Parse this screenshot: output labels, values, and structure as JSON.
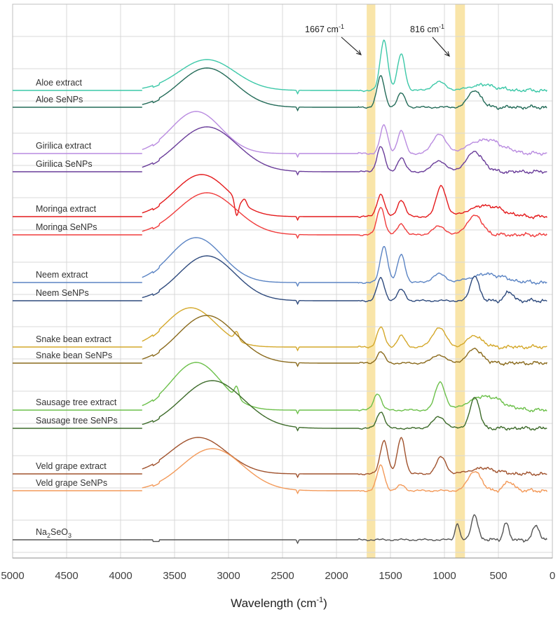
{
  "chart_data": {
    "type": "line",
    "title": "",
    "xlabel": "Wavelength (cm-1)",
    "xlabel_base": "Wavelength (cm",
    "xlabel_sup": "-1",
    "xlabel_close": ")",
    "ylabel": "",
    "xlim": [
      5000,
      0
    ],
    "x_reversed": true,
    "x_ticks": [
      5000,
      4500,
      4000,
      3500,
      3000,
      2500,
      2000,
      1500,
      1000,
      500,
      0
    ],
    "grid": true,
    "y_axis": "stacked offsets, no scale",
    "highlight_bands": [
      {
        "center": 1667,
        "from": 1720,
        "to": 1640,
        "color": "#f7dc8c"
      },
      {
        "center": 816,
        "from": 900,
        "to": 810,
        "color": "#f7dc8c"
      }
    ],
    "annotations": [
      {
        "text": "1667 cm-1",
        "base": "1667 cm",
        "sup": "-1",
        "arrow_to_x": 1700
      },
      {
        "text": "816 cm-1",
        "base": "816 cm",
        "sup": "-1",
        "arrow_to_x": 930
      }
    ],
    "series": [
      {
        "name": "Aloe extract",
        "color": "#3cc8a8",
        "baseline": 0.0,
        "highlight": 1,
        "features": [
          [
            3200,
            0.55,
            260
          ],
          [
            1560,
            0.9,
            35
          ],
          [
            1400,
            0.65,
            35
          ],
          [
            1050,
            0.15,
            60
          ],
          [
            640,
            0.1,
            120
          ]
        ]
      },
      {
        "name": "Aloe SeNPs",
        "color": "#236b58",
        "baseline": 0.0,
        "highlight": 0,
        "features": [
          [
            3200,
            0.7,
            260
          ],
          [
            1590,
            0.55,
            35
          ],
          [
            1400,
            0.25,
            35
          ],
          [
            720,
            0.3,
            60
          ]
        ]
      },
      {
        "name": "Girilica extract",
        "color": "#b98be0",
        "baseline": 0.0,
        "highlight": 1,
        "features": [
          [
            3300,
            0.75,
            230
          ],
          [
            1560,
            0.5,
            35
          ],
          [
            1400,
            0.4,
            35
          ],
          [
            1050,
            0.35,
            60
          ],
          [
            620,
            0.25,
            150
          ]
        ]
      },
      {
        "name": "Girilica SeNPs",
        "color": "#6a3d9a",
        "baseline": 0.0,
        "highlight": 0,
        "features": [
          [
            3200,
            0.8,
            280
          ],
          [
            1590,
            0.45,
            35
          ],
          [
            1400,
            0.25,
            35
          ],
          [
            1050,
            0.2,
            60
          ],
          [
            720,
            0.35,
            80
          ]
        ]
      },
      {
        "name": "Moringa extract",
        "color": "#e41a1c",
        "baseline": 0.0,
        "highlight": 1,
        "features": [
          [
            3250,
            0.75,
            250
          ],
          [
            2925,
            -0.3,
            18
          ],
          [
            2850,
            0.1,
            18
          ],
          [
            1590,
            0.4,
            35
          ],
          [
            1400,
            0.3,
            35
          ],
          [
            1030,
            0.55,
            45
          ],
          [
            620,
            0.2,
            150
          ]
        ]
      },
      {
        "name": "Moringa SeNPs",
        "color": "#f03c3c",
        "baseline": 0.0,
        "highlight": 0,
        "features": [
          [
            3200,
            0.75,
            270
          ],
          [
            1590,
            0.5,
            35
          ],
          [
            1400,
            0.2,
            35
          ],
          [
            1050,
            0.15,
            60
          ],
          [
            720,
            0.35,
            70
          ]
        ]
      },
      {
        "name": "Neem extract",
        "color": "#5b84c4",
        "baseline": 0.0,
        "highlight": 1,
        "features": [
          [
            3300,
            0.8,
            240
          ],
          [
            1560,
            0.65,
            35
          ],
          [
            1400,
            0.5,
            35
          ],
          [
            1050,
            0.15,
            60
          ],
          [
            600,
            0.15,
            150
          ]
        ]
      },
      {
        "name": "Neem SeNPs",
        "color": "#2e4a7d",
        "baseline": 0.0,
        "highlight": 0,
        "features": [
          [
            3200,
            0.8,
            260
          ],
          [
            1590,
            0.4,
            35
          ],
          [
            1400,
            0.2,
            35
          ],
          [
            720,
            0.45,
            40
          ],
          [
            400,
            0.15,
            40
          ]
        ]
      },
      {
        "name": "Snake bean extract",
        "color": "#d4a82a",
        "baseline": 0.0,
        "highlight": 1,
        "features": [
          [
            3350,
            0.7,
            230
          ],
          [
            2925,
            0.15,
            20
          ],
          [
            1590,
            0.35,
            35
          ],
          [
            1400,
            0.2,
            35
          ],
          [
            1050,
            0.35,
            60
          ],
          [
            720,
            0.2,
            70
          ]
        ]
      },
      {
        "name": "Snake bean SeNPs",
        "color": "#8a6a1c",
        "baseline": 0.0,
        "highlight": 0,
        "features": [
          [
            3200,
            0.85,
            270
          ],
          [
            1590,
            0.2,
            35
          ],
          [
            1050,
            0.15,
            60
          ],
          [
            720,
            0.25,
            70
          ]
        ]
      },
      {
        "name": "Sausage tree extract",
        "color": "#6cc04a",
        "baseline": 0.0,
        "highlight": 1,
        "features": [
          [
            3300,
            0.85,
            230
          ],
          [
            2925,
            0.2,
            20
          ],
          [
            1620,
            0.3,
            35
          ],
          [
            1040,
            0.5,
            45
          ],
          [
            620,
            0.25,
            150
          ]
        ]
      },
      {
        "name": "Sausage tree SeNPs",
        "color": "#3d6b2a",
        "baseline": 0.0,
        "highlight": 0,
        "features": [
          [
            3150,
            0.85,
            290
          ],
          [
            1590,
            0.3,
            35
          ],
          [
            1050,
            0.2,
            60
          ],
          [
            720,
            0.55,
            45
          ]
        ]
      },
      {
        "name": "Veld grape extract",
        "color": "#a0522d",
        "baseline": 0.0,
        "highlight": 1,
        "features": [
          [
            3280,
            0.65,
            260
          ],
          [
            1560,
            0.6,
            35
          ],
          [
            1400,
            0.65,
            35
          ],
          [
            1030,
            0.3,
            45
          ],
          [
            640,
            0.1,
            120
          ]
        ]
      },
      {
        "name": "Veld grape SeNPs",
        "color": "#f39a5a",
        "baseline": 0.0,
        "highlight": 0,
        "features": [
          [
            3150,
            0.75,
            280
          ],
          [
            1590,
            0.45,
            35
          ],
          [
            1400,
            0.1,
            35
          ],
          [
            720,
            0.35,
            60
          ],
          [
            400,
            0.15,
            50
          ]
        ]
      },
      {
        "name": "Na2SeO3",
        "display_base": "Na",
        "display_sub1": "2",
        "display_mid": "SeO",
        "display_sub2": "3",
        "color": "#555555",
        "baseline": 0.0,
        "highlight": 0,
        "features": [
          [
            880,
            0.3,
            20
          ],
          [
            720,
            0.45,
            30
          ],
          [
            430,
            0.3,
            25
          ],
          [
            150,
            0.25,
            30
          ]
        ]
      }
    ]
  }
}
